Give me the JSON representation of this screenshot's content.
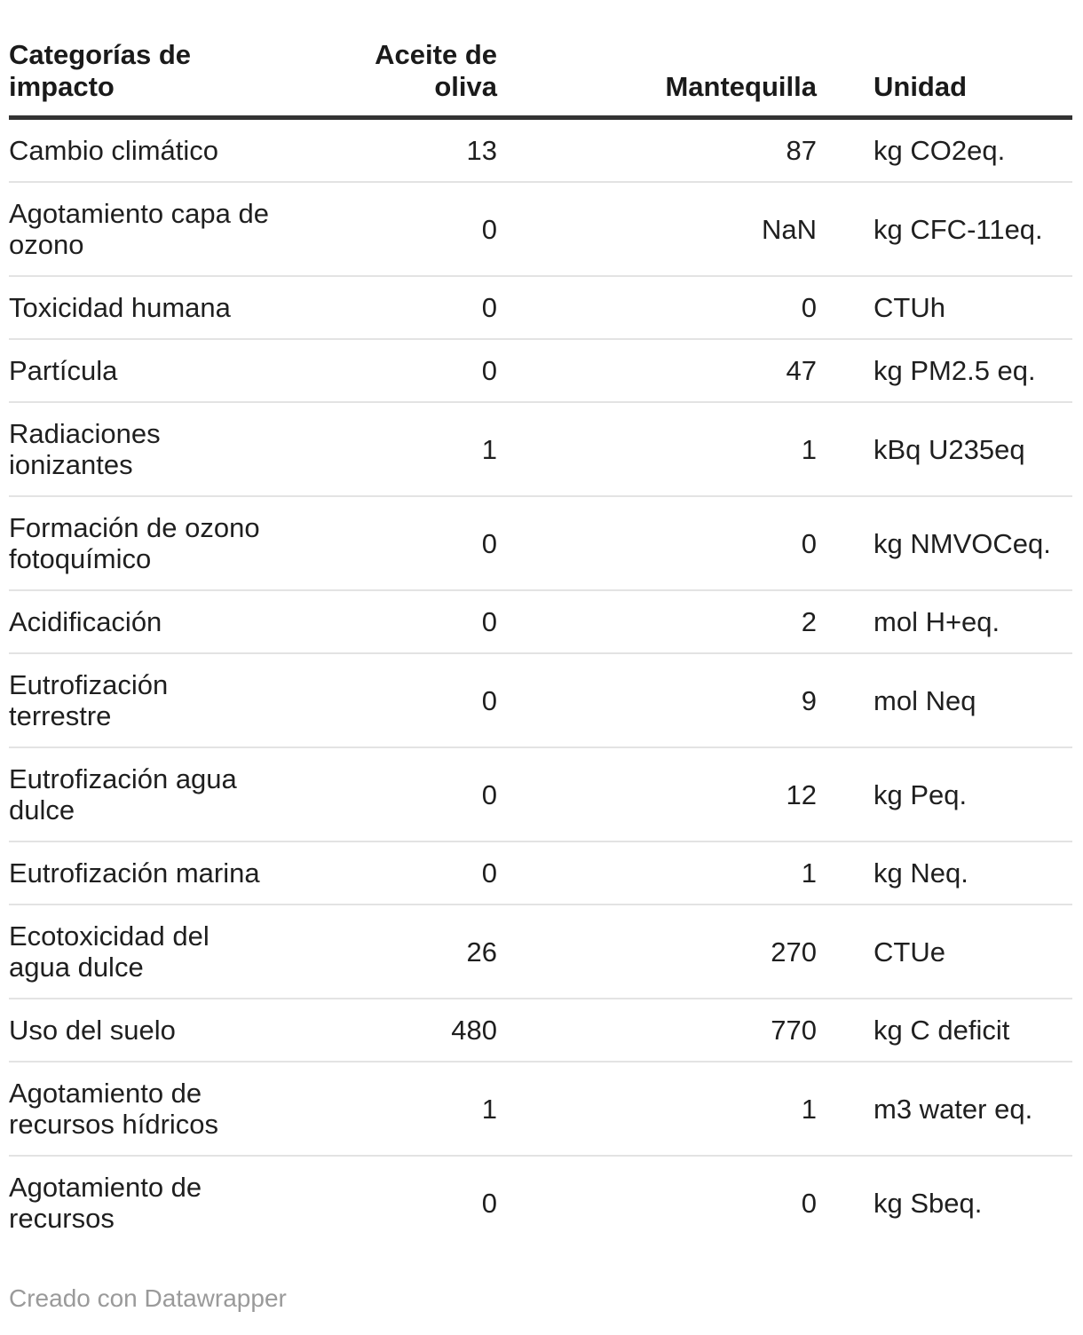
{
  "table": {
    "columns": [
      {
        "label": "Categorías de\nimpacto"
      },
      {
        "label": "Aceite de oliva"
      },
      {
        "label": "Mantequilla"
      },
      {
        "label": "Unidad"
      }
    ],
    "rows": [
      {
        "category": "Cambio climático",
        "aceite": "13",
        "mantequilla": "87",
        "unidad": "kg CO2eq."
      },
      {
        "category": "Agotamiento capa de\nozono",
        "aceite": "0",
        "mantequilla": "NaN",
        "unidad": "kg CFC-11eq."
      },
      {
        "category": "Toxicidad humana",
        "aceite": "0",
        "mantequilla": "0",
        "unidad": "CTUh"
      },
      {
        "category": "Partícula",
        "aceite": "0",
        "mantequilla": "47",
        "unidad": "kg PM2.5 eq."
      },
      {
        "category": "Radiaciones\nionizantes",
        "aceite": "1",
        "mantequilla": "1",
        "unidad": "kBq U235eq"
      },
      {
        "category": "Formación de ozono\nfotoquímico",
        "aceite": "0",
        "mantequilla": "0",
        "unidad": "kg NMVOCeq."
      },
      {
        "category": "Acidificación",
        "aceite": "0",
        "mantequilla": "2",
        "unidad": "mol H+eq."
      },
      {
        "category": "Eutrofización\nterrestre",
        "aceite": "0",
        "mantequilla": "9",
        "unidad": "mol Neq"
      },
      {
        "category": "Eutrofización agua\ndulce",
        "aceite": "0",
        "mantequilla": "12",
        "unidad": "kg Peq."
      },
      {
        "category": "Eutrofización marina",
        "aceite": "0",
        "mantequilla": "1",
        "unidad": "kg Neq."
      },
      {
        "category": "Ecotoxicidad del\nagua dulce",
        "aceite": "26",
        "mantequilla": "270",
        "unidad": "CTUe"
      },
      {
        "category": "Uso del suelo",
        "aceite": "480",
        "mantequilla": "770",
        "unidad": "kg C deficit"
      },
      {
        "category": "Agotamiento de\nrecursos hídricos",
        "aceite": "1",
        "mantequilla": "1",
        "unidad": "m3 water eq."
      },
      {
        "category": "Agotamiento de\nrecursos",
        "aceite": "0",
        "mantequilla": "0",
        "unidad": "kg Sbeq."
      }
    ]
  },
  "footer": {
    "credit": "Creado con Datawrapper"
  },
  "colors": {
    "text": "#1f1f1f",
    "header_rule": "#333333",
    "row_separator": "#e3e3e3",
    "credit_text": "#9a9a9a",
    "background": "#ffffff"
  },
  "chart_data": {
    "type": "table",
    "title": "",
    "columns": [
      "Categorías de impacto",
      "Aceite de oliva",
      "Mantequilla",
      "Unidad"
    ],
    "rows": [
      [
        "Cambio climático",
        13,
        87,
        "kg CO2eq."
      ],
      [
        "Agotamiento capa de ozono",
        0,
        "NaN",
        "kg CFC-11eq."
      ],
      [
        "Toxicidad humana",
        0,
        0,
        "CTUh"
      ],
      [
        "Partícula",
        0,
        47,
        "kg PM2.5 eq."
      ],
      [
        "Radiaciones ionizantes",
        1,
        1,
        "kBq U235eq"
      ],
      [
        "Formación de ozono fotoquímico",
        0,
        0,
        "kg NMVOCeq."
      ],
      [
        "Acidificación",
        0,
        2,
        "mol H+eq."
      ],
      [
        "Eutrofización terrestre",
        0,
        9,
        "mol Neq"
      ],
      [
        "Eutrofización agua dulce",
        0,
        12,
        "kg Peq."
      ],
      [
        "Eutrofización marina",
        0,
        1,
        "kg Neq."
      ],
      [
        "Ecotoxicidad del agua dulce",
        26,
        270,
        "CTUe"
      ],
      [
        "Uso del suelo",
        480,
        770,
        "kg C deficit"
      ],
      [
        "Agotamiento de recursos hídricos",
        1,
        1,
        "m3 water eq."
      ],
      [
        "Agotamiento de recursos",
        0,
        0,
        "kg Sbeq."
      ]
    ],
    "layout_hints": {
      "grid": "horizontal-separators",
      "header_alignments": [
        "left",
        "right",
        "right",
        "left"
      ]
    }
  }
}
